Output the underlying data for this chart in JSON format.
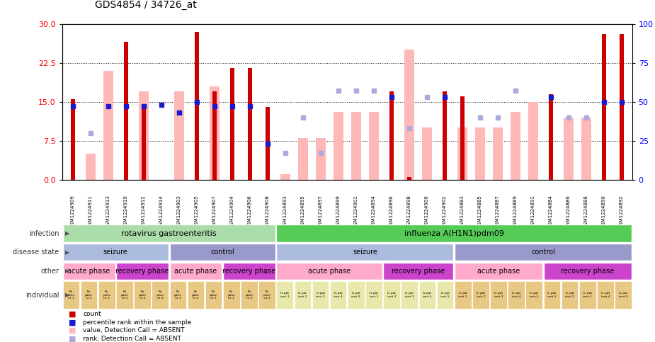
{
  "title": "GDS4854 / 34726_at",
  "samples": [
    "GSM1224909",
    "GSM1224911",
    "GSM1224913",
    "GSM1224910",
    "GSM1224912",
    "GSM1224914",
    "GSM1224903",
    "GSM1224905",
    "GSM1224907",
    "GSM1224904",
    "GSM1224906",
    "GSM1224908",
    "GSM1224893",
    "GSM1224895",
    "GSM1224897",
    "GSM1224899",
    "GSM1224901",
    "GSM1224894",
    "GSM1224896",
    "GSM1224898",
    "GSM1224900",
    "GSM1224902",
    "GSM1224883",
    "GSM1224885",
    "GSM1224887",
    "GSM1224889",
    "GSM1224891",
    "GSM1224884",
    "GSM1224886",
    "GSM1224888",
    "GSM1224890",
    "GSM1224892"
  ],
  "count_values": [
    15.5,
    0,
    0,
    26.5,
    14.5,
    0,
    0,
    28.5,
    17,
    21.5,
    21.5,
    14,
    0,
    0,
    0,
    0,
    0,
    0,
    17,
    0.5,
    0,
    17,
    16,
    0,
    0,
    0,
    0,
    16.5,
    0,
    0,
    28,
    28
  ],
  "rank_values_pct": [
    47,
    0,
    47,
    47,
    47,
    48,
    43,
    50,
    47,
    47,
    47,
    23,
    0,
    0,
    0,
    0,
    0,
    0,
    53,
    0,
    0,
    53,
    0,
    0,
    0,
    0,
    0,
    53,
    0,
    0,
    50,
    50
  ],
  "absent_value": [
    0,
    5,
    21,
    0,
    17,
    0,
    17,
    0,
    18,
    0,
    0,
    0,
    1,
    8,
    8,
    13,
    13,
    13,
    0,
    25,
    10,
    0,
    10,
    10,
    10,
    13,
    15,
    0,
    12,
    12,
    0,
    0
  ],
  "absent_rank_pct": [
    0,
    30,
    0,
    0,
    0,
    0,
    0,
    0,
    0,
    0,
    0,
    0,
    17,
    40,
    17,
    57,
    57,
    57,
    0,
    33,
    53,
    0,
    0,
    40,
    40,
    57,
    0,
    0,
    40,
    40,
    0,
    0
  ],
  "ylim_left": [
    0,
    30
  ],
  "ylim_right": [
    0,
    100
  ],
  "yticks_left": [
    0,
    7.5,
    15,
    22.5,
    30
  ],
  "yticks_right": [
    0,
    25,
    50,
    75,
    100
  ],
  "color_count": "#cc0000",
  "color_rank": "#1a1acc",
  "color_absent_val": "#ffb8b8",
  "color_absent_rank": "#aaaadd",
  "infection_labels": [
    {
      "text": "rotavirus gastroenteritis",
      "start": 0,
      "end": 11,
      "color": "#aaddaa"
    },
    {
      "text": "influenza A(H1N1)pdm09",
      "start": 12,
      "end": 31,
      "color": "#55cc55"
    }
  ],
  "disease_labels": [
    {
      "text": "seizure",
      "start": 0,
      "end": 5,
      "color": "#aabbdd"
    },
    {
      "text": "control",
      "start": 6,
      "end": 11,
      "color": "#9999cc"
    },
    {
      "text": "seizure",
      "start": 12,
      "end": 21,
      "color": "#aabbdd"
    },
    {
      "text": "control",
      "start": 22,
      "end": 31,
      "color": "#9999cc"
    }
  ],
  "other_labels": [
    {
      "text": "acute phase",
      "start": 0,
      "end": 2,
      "color": "#ffaacc"
    },
    {
      "text": "recovery phase",
      "start": 3,
      "end": 5,
      "color": "#cc44cc"
    },
    {
      "text": "acute phase",
      "start": 6,
      "end": 8,
      "color": "#ffaacc"
    },
    {
      "text": "recovery phase",
      "start": 9,
      "end": 11,
      "color": "#cc44cc"
    },
    {
      "text": "acute phase",
      "start": 12,
      "end": 17,
      "color": "#ffaacc"
    },
    {
      "text": "recovery phase",
      "start": 18,
      "end": 21,
      "color": "#cc44cc"
    },
    {
      "text": "acute phase",
      "start": 22,
      "end": 26,
      "color": "#ffaacc"
    },
    {
      "text": "recovery phase",
      "start": 27,
      "end": 31,
      "color": "#cc44cc"
    }
  ],
  "ind_labels": [
    "Rs\npatie\nnt 1",
    "Rs\npatie\nnt 2",
    "Rs\npatie\nnt 3",
    "Rs\npatie\nnt 1",
    "Rs\npatie\nnt 2",
    "Rs\npatie\nnt 3",
    "Rc\npatie\nnt 1",
    "Rc\npatie\nnt 2",
    "Rc\npatie\nnt 3",
    "Rc\npatie\nnt 1",
    "Rc\npatie\nnt 2",
    "Rc\npatie\nnt 3",
    "Is pat\nient 1",
    "Is pat\nient 2",
    "Is pat\nient 3",
    "Is pat\nient 4",
    "Is pat\nient 5",
    "Is pat\nient 1",
    "Is pat\nient 2",
    "Is pat\nient 3",
    "Is pat\nient 4",
    "Is pat\nient 5",
    "Ic pat\nient 1",
    "Ic pat\nient 2",
    "Ic pat\nient 3",
    "Ic pat\nient 4",
    "Ic pat\nient 5",
    "Ic pat\nient 1",
    "Ic pat\nient 2",
    "Ic pat\nient 3",
    "Ic pat\nient 4",
    "Ic pat\nient 5"
  ],
  "ind_bg": [
    "#e8c882",
    "#e8c882",
    "#e8c882",
    "#e8c882",
    "#e8c882",
    "#e8c882",
    "#e8c882",
    "#e8c882",
    "#e8c882",
    "#e8c882",
    "#e8c882",
    "#e8c882",
    "#e8e8aa",
    "#e8e8aa",
    "#e8e8aa",
    "#e8e8aa",
    "#e8e8aa",
    "#e8e8aa",
    "#e8e8aa",
    "#e8e8aa",
    "#e8e8aa",
    "#e8e8aa",
    "#e8c882",
    "#e8c882",
    "#e8c882",
    "#e8c882",
    "#e8c882",
    "#e8c882",
    "#e8c882",
    "#e8c882",
    "#e8c882",
    "#e8c882"
  ],
  "row_labels": [
    "infection",
    "disease state",
    "other",
    "individual"
  ],
  "legend": [
    {
      "color": "#cc0000",
      "text": "count"
    },
    {
      "color": "#1a1acc",
      "text": "percentile rank within the sample"
    },
    {
      "color": "#ffb8b8",
      "text": "value, Detection Call = ABSENT"
    },
    {
      "color": "#aaaadd",
      "text": "rank, Detection Call = ABSENT"
    }
  ]
}
